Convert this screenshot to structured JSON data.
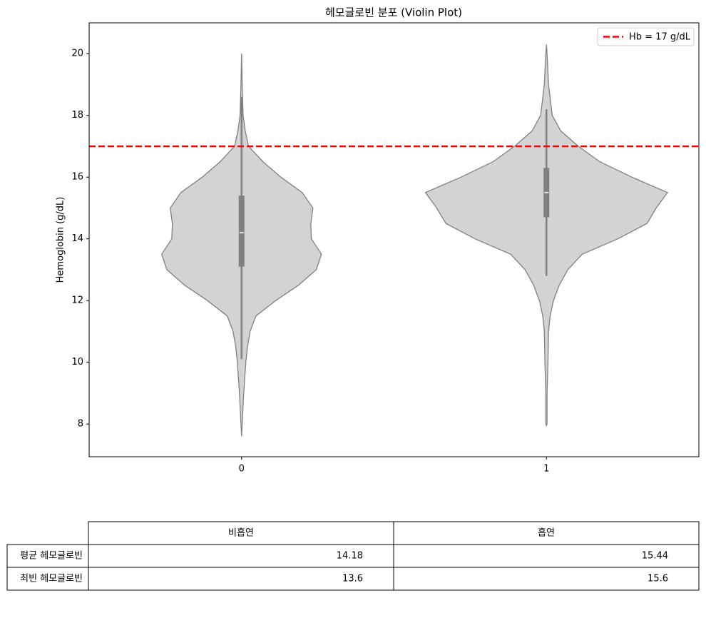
{
  "chart_data": {
    "type": "violin",
    "title": "헤모글로빈 분포 (Violin Plot)",
    "ylabel": "Hemoglobin (g/dL)",
    "categories": [
      "0",
      "1"
    ],
    "fill": "#d3d3d3",
    "edge": "#808080",
    "xlim": [
      -0.5,
      1.5
    ],
    "ylim": [
      6.94,
      21
    ],
    "yticks": [
      8,
      10,
      12,
      14,
      16,
      18,
      20
    ],
    "violins": [
      {
        "y": [
          7.6,
          8,
          9,
          10,
          10.5,
          11,
          11.5,
          12,
          12.5,
          13,
          13.5,
          14,
          14.5,
          15,
          15.5,
          16,
          16.5,
          17,
          17.5,
          18,
          19,
          20
        ],
        "width": [
          0,
          0.002,
          0.007,
          0.014,
          0.019,
          0.028,
          0.047,
          0.112,
          0.187,
          0.245,
          0.262,
          0.229,
          0.227,
          0.234,
          0.199,
          0.129,
          0.07,
          0.023,
          0.012,
          0.005,
          0.002,
          0
        ],
        "min": 10.1,
        "q1": 13.1,
        "median": 14.2,
        "q3": 15.4,
        "max": 18.6
      },
      {
        "y": [
          7.95,
          8,
          9,
          10,
          11,
          11.5,
          12,
          12.5,
          13,
          13.5,
          14,
          14.5,
          15,
          15.5,
          16,
          16.5,
          17,
          17.5,
          18,
          19,
          20,
          20.3
        ],
        "width": [
          0,
          0.002,
          0.002,
          0.005,
          0.007,
          0.012,
          0.023,
          0.042,
          0.07,
          0.117,
          0.234,
          0.33,
          0.36,
          0.397,
          0.28,
          0.175,
          0.105,
          0.047,
          0.019,
          0.007,
          0.002,
          0
        ],
        "min": 12.8,
        "q1": 14.7,
        "median": 15.5,
        "q3": 16.3,
        "max": 18.2
      }
    ],
    "hline": {
      "value": 17,
      "label": "Hb = 17 g/dL",
      "color": "#ff0000"
    },
    "legend": "upper right"
  },
  "table": {
    "columns": [
      "비흡연",
      "흡연"
    ],
    "rows": [
      {
        "label": "평균 헤모글로빈",
        "values": [
          14.18,
          15.44
        ]
      },
      {
        "label": "최빈 헤모글로빈",
        "values": [
          13.6,
          15.6
        ]
      }
    ]
  }
}
